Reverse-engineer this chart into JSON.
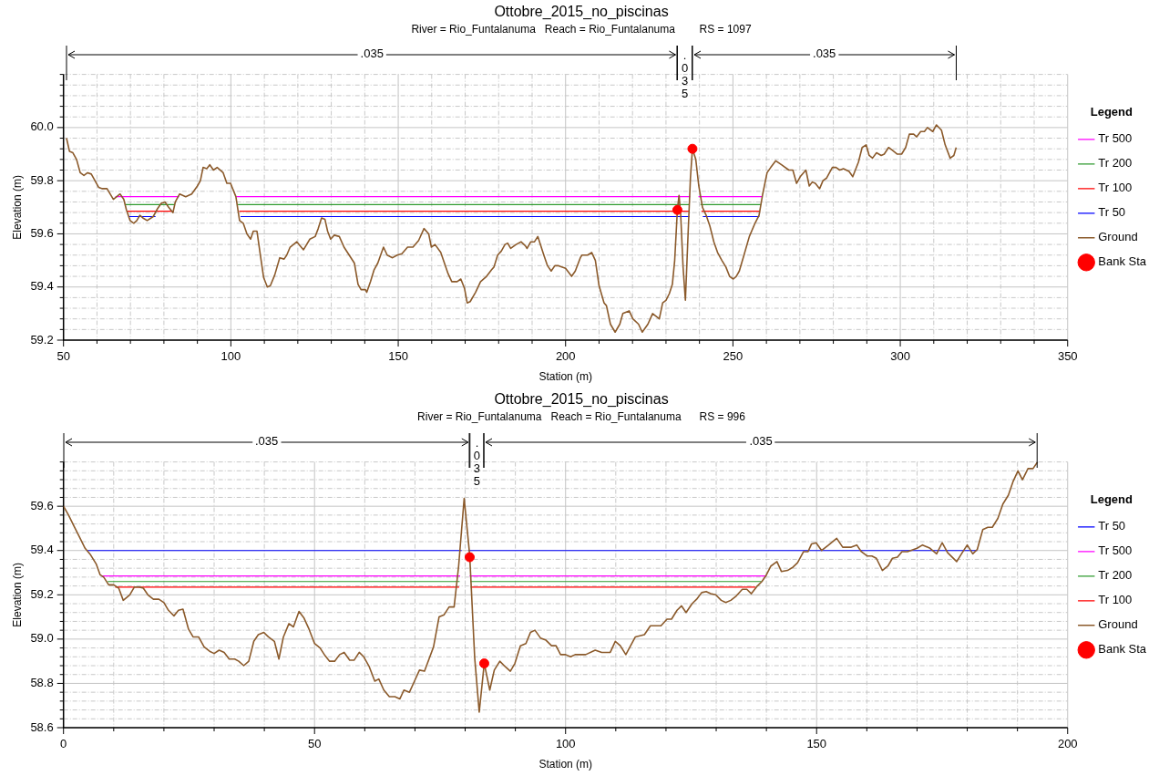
{
  "chart_data": [
    {
      "type": "line",
      "title": "Ottobre_2015_no_piscinas",
      "subtitle": "River = Rio_Funtalanuma   Reach = Rio_Funtalanuma        RS = 1097",
      "xlabel": "Station (m)",
      "ylabel": "Elevation (m)",
      "legend": "right",
      "legend_title": "Legend",
      "grid": true,
      "xlim": [
        50,
        350
      ],
      "xticks": [
        50,
        {
          "value": 60,
          "label": null
        },
        {
          "value": 70,
          "label": null
        },
        {
          "value": 80,
          "label": null
        },
        {
          "value": 90,
          "label": null
        },
        100,
        {
          "value": 110,
          "label": null
        },
        {
          "value": 120,
          "label": null
        },
        {
          "value": 130,
          "label": null
        },
        {
          "value": 140,
          "label": null
        },
        150,
        {
          "value": 160,
          "label": null
        },
        {
          "value": 170,
          "label": null
        },
        {
          "value": 180,
          "label": null
        },
        {
          "value": 190,
          "label": null
        },
        200,
        {
          "value": 210,
          "label": null
        },
        {
          "value": 220,
          "label": null
        },
        {
          "value": 230,
          "label": null
        },
        {
          "value": 240,
          "label": null
        },
        250,
        {
          "value": 260,
          "label": null
        },
        {
          "value": 270,
          "label": null
        },
        {
          "value": 280,
          "label": null
        },
        {
          "value": 290,
          "label": null
        },
        300,
        {
          "value": 310,
          "label": null
        },
        {
          "value": 320,
          "label": null
        },
        {
          "value": 330,
          "label": null
        },
        {
          "value": 340,
          "label": null
        },
        350
      ],
      "ylim": [
        59.2,
        60.2
      ],
      "yticks": [
        59.2,
        {
          "value": 59.24,
          "label": null
        },
        {
          "value": 59.28,
          "label": null
        },
        {
          "value": 59.32,
          "label": null
        },
        {
          "value": 59.36,
          "label": null
        },
        59.4,
        {
          "value": 59.44,
          "label": null
        },
        {
          "value": 59.48,
          "label": null
        },
        {
          "value": 59.52,
          "label": null
        },
        {
          "value": 59.56,
          "label": null
        },
        59.6,
        {
          "value": 59.64,
          "label": null
        },
        {
          "value": 59.68,
          "label": null
        },
        {
          "value": 59.72,
          "label": null
        },
        {
          "value": 59.76,
          "label": null
        },
        59.8,
        {
          "value": 59.84,
          "label": null
        },
        {
          "value": 59.88,
          "label": null
        },
        {
          "value": 59.92,
          "label": null
        },
        {
          "value": 59.96,
          "label": null
        },
        {
          "value": 60,
          "label": "60.0"
        },
        {
          "value": 60.04,
          "label": null
        },
        {
          "value": 60.08,
          "label": null
        },
        {
          "value": 60.12,
          "label": null
        },
        {
          "value": 60.16,
          "label": null
        },
        {
          "value": 60.2,
          "label": null
        }
      ],
      "annotations": [
        ".035",
        ".035",
        ".035"
      ],
      "series": [
        {
          "name": "Tr 500",
          "color": "#ff00ff",
          "x": [
            65.5,
            84.5,
            85,
            101.6,
            237.2,
            238,
            239.7,
            258.8
          ],
          "values": [
            59.74,
            59.74,
            null,
            59.74,
            59.74,
            null,
            59.74,
            59.74
          ]
        },
        {
          "name": "Tr 200",
          "color": "#2e9a2e",
          "x": [
            68.5,
            83.3,
            84,
            102.1,
            237.1,
            238,
            240.3,
            258.4
          ],
          "values": [
            59.71,
            59.71,
            null,
            59.71,
            59.71,
            null,
            59.71,
            59.71
          ]
        },
        {
          "name": "Tr 100",
          "color": "#ff0000",
          "x": [
            69,
            83,
            84,
            102.5,
            237,
            238,
            240.6,
            258.1
          ],
          "values": [
            59.685,
            59.685,
            null,
            59.685,
            59.685,
            null,
            59.685,
            59.685
          ]
        },
        {
          "name": "Tr 50",
          "color": "#0000ff",
          "x": [
            69.5,
            77.5,
            80,
            102.9,
            237,
            238,
            241,
            257.9
          ],
          "values": [
            59.665,
            59.665,
            null,
            59.665,
            59.665,
            null,
            59.665,
            59.665
          ]
        },
        {
          "name": "Ground",
          "color": "#8b5a2b",
          "x": [
            50.9,
            51.8,
            52.8,
            53.9,
            55.0,
            56.1,
            57.2,
            58.3,
            59.4,
            60.5,
            61.6,
            63.0,
            64.9,
            66.9,
            68.0,
            68.8,
            69.9,
            71.0,
            71.9,
            72.8,
            73.7,
            75.0,
            76.8,
            78.1,
            79.2,
            80.3,
            81.4,
            82.7,
            83.4,
            84.7,
            86.5,
            88.3,
            90.0,
            90.9,
            91.7,
            92.8,
            93.7,
            94.8,
            95.9,
            97.7,
            98.8,
            99.9,
            101.5,
            102.6,
            103.7,
            104.8,
            105.9,
            106.7,
            107.8,
            108.7,
            109.8,
            110.9,
            111.8,
            113.1,
            114.6,
            115.9,
            116.7,
            117.7,
            119.7,
            121.7,
            123.6,
            125.2,
            126.1,
            127.1,
            128.1,
            128.9,
            129.8,
            130.9,
            132.4,
            133.8,
            136.9,
            138.0,
            138.9,
            140.2,
            140.6,
            141.7,
            142.8,
            143.9,
            145.6,
            146.7,
            148.3,
            149.7,
            151.1,
            152.8,
            154.4,
            156.1,
            157.7,
            159.1,
            159.9,
            161.0,
            162.7,
            164.9,
            166.0,
            167.6,
            168.7,
            169.8,
            170.6,
            171.5,
            173.1,
            174.6,
            176.4,
            177.9,
            178.6,
            179.7,
            180.8,
            181.9,
            182.7,
            183.6,
            185.2,
            186.7,
            188.0,
            188.5,
            189.6,
            190.7,
            191.7,
            193.5,
            194.6,
            195.7,
            196.8,
            197.9,
            200.0,
            201.8,
            202.9,
            204.4,
            204.9,
            206.6,
            207.8,
            208.9,
            210.0,
            211.5,
            212.2,
            213.4,
            214.8,
            216.2,
            217.1,
            219.0,
            220.1,
            221.8,
            222.9,
            224.6,
            226.0,
            228.0,
            229.0,
            230.0,
            231.0,
            231.9,
            232.6,
            233.4,
            233.9,
            234.4,
            235.1,
            235.8,
            236.6,
            237.3,
            237.9,
            238.9,
            239.8,
            240.9,
            242.0,
            243.1,
            244.3,
            245.4,
            246.7,
            247.9,
            249.0,
            250.1,
            251.0,
            251.9,
            253.3,
            254.9,
            256.6,
            257.8,
            258.9,
            260.2,
            261.3,
            262.8,
            264.5,
            266.7,
            267.9,
            269.0,
            270.1,
            271.8,
            272.8,
            273.7,
            274.6,
            275.9,
            276.9,
            278.0,
            279.7,
            280.8,
            281.9,
            283.0,
            284.7,
            285.8,
            287.5,
            288.6,
            289.8,
            290.7,
            291.7,
            292.9,
            294.3,
            295.2,
            296.5,
            297.6,
            299.1,
            300.4,
            301.6,
            302.7,
            304.0,
            304.9,
            306.1,
            307.2,
            308.1,
            309.7,
            310.8,
            312.3,
            313.4,
            314.9,
            316.0,
            316.7
          ],
          "values": [
            59.96,
            59.91,
            59.905,
            59.88,
            59.83,
            59.82,
            59.83,
            59.825,
            59.8,
            59.775,
            59.77,
            59.77,
            59.73,
            59.75,
            59.73,
            59.69,
            59.65,
            59.64,
            59.65,
            59.67,
            59.66,
            59.65,
            59.665,
            59.695,
            59.715,
            59.72,
            59.7,
            59.68,
            59.72,
            59.75,
            59.74,
            59.75,
            59.78,
            59.8,
            59.85,
            59.845,
            59.86,
            59.84,
            59.85,
            59.83,
            59.79,
            59.79,
            59.74,
            59.65,
            59.64,
            59.6,
            59.58,
            59.61,
            59.61,
            59.53,
            59.435,
            59.4,
            59.405,
            59.445,
            59.51,
            59.505,
            59.52,
            59.55,
            59.57,
            59.54,
            59.58,
            59.59,
            59.62,
            59.66,
            59.655,
            59.61,
            59.58,
            59.595,
            59.59,
            59.55,
            59.49,
            59.41,
            59.39,
            59.39,
            59.38,
            59.42,
            59.465,
            59.49,
            59.55,
            59.52,
            59.51,
            59.52,
            59.525,
            59.55,
            59.55,
            59.575,
            59.62,
            59.6,
            59.55,
            59.56,
            59.53,
            59.45,
            59.42,
            59.42,
            59.43,
            59.395,
            59.34,
            59.345,
            59.38,
            59.42,
            59.44,
            59.465,
            59.475,
            59.52,
            59.535,
            59.56,
            59.565,
            59.545,
            59.56,
            59.57,
            59.555,
            59.545,
            59.57,
            59.57,
            59.59,
            59.52,
            59.48,
            59.46,
            59.48,
            59.48,
            59.47,
            59.44,
            59.46,
            59.51,
            59.52,
            59.52,
            59.53,
            59.5,
            59.405,
            59.34,
            59.33,
            59.26,
            59.23,
            59.26,
            59.3,
            59.31,
            59.28,
            59.26,
            59.23,
            59.26,
            59.3,
            59.28,
            59.34,
            59.35,
            59.375,
            59.41,
            59.5,
            59.69,
            59.745,
            59.67,
            59.475,
            59.35,
            59.6,
            59.81,
            59.92,
            59.88,
            59.78,
            59.7,
            59.67,
            59.63,
            59.57,
            59.53,
            59.5,
            59.475,
            59.44,
            59.43,
            59.44,
            59.46,
            59.52,
            59.59,
            59.64,
            59.67,
            59.75,
            59.83,
            59.85,
            59.875,
            59.86,
            59.84,
            59.84,
            59.79,
            59.815,
            59.84,
            59.78,
            59.795,
            59.79,
            59.77,
            59.8,
            59.81,
            59.85,
            59.85,
            59.84,
            59.845,
            59.835,
            59.815,
            59.87,
            59.925,
            59.935,
            59.895,
            59.885,
            59.905,
            59.895,
            59.9,
            59.925,
            59.915,
            59.9,
            59.9,
            59.925,
            59.975,
            59.975,
            59.965,
            59.985,
            59.985,
            60.0,
            59.985,
            60.01,
            59.99,
            59.935,
            59.885,
            59.895,
            59.925
          ]
        },
        {
          "name": "Bank Sta",
          "color": "#ff0000",
          "type": "scatter",
          "x": [
            233.4,
            237.9
          ],
          "values": [
            59.69,
            59.92
          ]
        }
      ]
    },
    {
      "type": "line",
      "title": "Ottobre_2015_no_piscinas",
      "subtitle": "River = Rio_Funtalanuma   Reach = Rio_Funtalanuma      RS = 996",
      "xlabel": "Station (m)",
      "ylabel": "Elevation (m)",
      "legend": "right",
      "legend_title": "Legend",
      "grid": true,
      "xlim": [
        0,
        200
      ],
      "xticks": [
        0,
        {
          "value": 10,
          "label": null
        },
        {
          "value": 20,
          "label": null
        },
        {
          "value": 30,
          "label": null
        },
        {
          "value": 40,
          "label": null
        },
        50,
        {
          "value": 60,
          "label": null
        },
        {
          "value": 70,
          "label": null
        },
        {
          "value": 80,
          "label": null
        },
        {
          "value": 90,
          "label": null
        },
        100,
        {
          "value": 110,
          "label": null
        },
        {
          "value": 120,
          "label": null
        },
        {
          "value": 130,
          "label": null
        },
        {
          "value": 140,
          "label": null
        },
        150,
        {
          "value": 160,
          "label": null
        },
        {
          "value": 170,
          "label": null
        },
        {
          "value": 180,
          "label": null
        },
        {
          "value": 190,
          "label": null
        },
        200
      ],
      "ylim": [
        58.6,
        59.8
      ],
      "yticks": [
        58.6,
        {
          "value": 58.64,
          "label": null
        },
        {
          "value": 58.68,
          "label": null
        },
        {
          "value": 58.72,
          "label": null
        },
        {
          "value": 58.76,
          "label": null
        },
        58.8,
        {
          "value": 58.84,
          "label": null
        },
        {
          "value": 58.88,
          "label": null
        },
        {
          "value": 58.92,
          "label": null
        },
        {
          "value": 58.96,
          "label": null
        },
        {
          "value": 59,
          "label": "59.0"
        },
        {
          "value": 59.04,
          "label": null
        },
        {
          "value": 59.08,
          "label": null
        },
        {
          "value": 59.12,
          "label": null
        },
        {
          "value": 59.16,
          "label": null
        },
        59.2,
        {
          "value": 59.24,
          "label": null
        },
        {
          "value": 59.28,
          "label": null
        },
        {
          "value": 59.32,
          "label": null
        },
        {
          "value": 59.36,
          "label": null
        },
        59.4,
        {
          "value": 59.44,
          "label": null
        },
        {
          "value": 59.48,
          "label": null
        },
        {
          "value": 59.52,
          "label": null
        },
        {
          "value": 59.56,
          "label": null
        },
        59.6,
        {
          "value": 59.64,
          "label": null
        },
        {
          "value": 59.68,
          "label": null
        },
        {
          "value": 59.72,
          "label": null
        },
        {
          "value": 59.76,
          "label": null
        },
        {
          "value": 59.8,
          "label": null
        }
      ],
      "annotations": [
        ".035",
        ".035",
        ".035"
      ],
      "series": [
        {
          "name": "Tr 50",
          "color": "#0000ff",
          "x": [
            4.8,
            79.3,
            80,
            80.6,
            182.0
          ],
          "values": [
            59.4,
            59.4,
            null,
            59.4,
            59.4
          ]
        },
        {
          "name": "Tr 500",
          "color": "#ff00ff",
          "x": [
            7.5,
            79,
            80,
            80.9,
            140
          ],
          "values": [
            59.285,
            59.285,
            null,
            59.285,
            59.285
          ]
        },
        {
          "name": "Tr 200",
          "color": "#2e9a2e",
          "x": [
            8.8,
            78.9,
            80,
            81,
            139
          ],
          "values": [
            59.26,
            59.26,
            null,
            59.26,
            59.26
          ]
        },
        {
          "name": "Tr 100",
          "color": "#ff0000",
          "x": [
            10.3,
            78.8,
            80,
            81.1,
            137.8
          ],
          "values": [
            59.235,
            59.235,
            null,
            59.235,
            59.235
          ]
        },
        {
          "name": "Ground",
          "color": "#8b5a2b",
          "x": [
            0,
            1.0,
            2.1,
            3.2,
            4.3,
            5.4,
            6.5,
            7.3,
            8.0,
            9.0,
            10.0,
            11.0,
            11.9,
            13.2,
            14.1,
            15.0,
            15.9,
            16.8,
            17.9,
            19.0,
            20.0,
            20.9,
            22.0,
            22.9,
            23.8,
            24.9,
            25.8,
            26.9,
            28.0,
            29.1,
            30.0,
            31.0,
            32.0,
            33.0,
            34.1,
            34.9,
            35.9,
            36.9,
            37.9,
            38.8,
            39.9,
            40.8,
            42.0,
            42.9,
            43.8,
            44.9,
            45.8,
            46.9,
            47.9,
            48.9,
            50.0,
            51.1,
            52.1,
            53.0,
            54.0,
            55.0,
            55.9,
            57.0,
            57.9,
            58.9,
            59.8,
            60.9,
            62.0,
            62.8,
            63.8,
            64.9,
            66.0,
            67.0,
            67.8,
            68.9,
            69.9,
            70.9,
            71.9,
            72.8,
            73.7,
            74.8,
            75.8,
            76.8,
            77.8,
            78.7,
            79.8,
            80.9,
            81.9,
            82.8,
            83.8,
            84.9,
            85.8,
            86.9,
            88.0,
            89.0,
            89.9,
            91.0,
            92.1,
            93.0,
            93.9,
            95.0,
            96.1,
            97.2,
            98.1,
            99.0,
            100.0,
            101.0,
            101.9,
            104.0,
            105.9,
            107.2,
            108.9,
            109.9,
            110.9,
            112.0,
            113.9,
            115.7,
            116.9,
            119.0,
            120.2,
            121.1,
            122.2,
            123.1,
            124.0,
            125.2,
            126.1,
            127.1,
            128.0,
            128.9,
            129.9,
            131.0,
            131.9,
            132.9,
            134.0,
            135.2,
            136.1,
            137.0,
            138.2,
            139.1,
            140.0,
            140.9,
            142.1,
            143.0,
            144.2,
            145.3,
            146.2,
            147.4,
            148.3,
            149.0,
            149.9,
            151.0,
            152.4,
            154.0,
            155.2,
            156.9,
            158.0,
            158.9,
            160.1,
            161.0,
            161.9,
            163.1,
            164.2,
            165.1,
            166.1,
            167.0,
            168.1,
            170.0,
            171.1,
            172.6,
            173.9,
            175.0,
            176.1,
            177.9,
            179.0,
            180.0,
            181.1,
            182.0,
            183.1,
            184.1,
            185.0,
            186.1,
            187.1,
            188.2,
            189.1,
            190.1,
            191.0,
            192.1,
            193.1,
            194.0
          ],
          "values": [
            59.6,
            59.56,
            59.51,
            59.46,
            59.41,
            59.38,
            59.34,
            59.29,
            59.28,
            59.245,
            59.245,
            59.23,
            59.175,
            59.2,
            59.235,
            59.235,
            59.23,
            59.2,
            59.18,
            59.18,
            59.165,
            59.13,
            59.105,
            59.13,
            59.135,
            59.045,
            59.01,
            59.01,
            58.965,
            58.945,
            58.935,
            58.95,
            58.94,
            58.91,
            58.91,
            58.9,
            58.88,
            58.9,
            58.99,
            59.02,
            59.03,
            59.01,
            58.99,
            58.91,
            59.01,
            59.07,
            59.055,
            59.125,
            59.095,
            59.045,
            58.98,
            58.96,
            58.925,
            58.9,
            58.9,
            58.93,
            58.94,
            58.905,
            58.905,
            58.94,
            58.92,
            58.875,
            58.81,
            58.82,
            58.77,
            58.74,
            58.74,
            58.73,
            58.77,
            58.76,
            58.81,
            58.86,
            58.855,
            58.91,
            58.965,
            59.1,
            59.11,
            59.145,
            59.145,
            59.33,
            59.635,
            59.38,
            58.915,
            58.67,
            58.89,
            58.77,
            58.86,
            58.9,
            58.875,
            58.855,
            58.89,
            58.97,
            58.98,
            59.03,
            59.04,
            59.005,
            58.995,
            58.97,
            58.97,
            58.93,
            58.93,
            58.92,
            58.93,
            58.93,
            58.95,
            58.94,
            58.94,
            58.99,
            58.97,
            58.93,
            59.01,
            59.02,
            59.06,
            59.06,
            59.09,
            59.09,
            59.13,
            59.15,
            59.12,
            59.16,
            59.18,
            59.21,
            59.215,
            59.205,
            59.2,
            59.175,
            59.165,
            59.175,
            59.195,
            59.225,
            59.225,
            59.205,
            59.24,
            59.26,
            59.29,
            59.33,
            59.35,
            59.305,
            59.31,
            59.325,
            59.345,
            59.395,
            59.395,
            59.43,
            59.435,
            59.4,
            59.425,
            59.455,
            59.415,
            59.415,
            59.425,
            59.395,
            59.375,
            59.375,
            59.365,
            59.31,
            59.33,
            59.365,
            59.37,
            59.395,
            59.395,
            59.41,
            59.425,
            59.41,
            59.385,
            59.435,
            59.39,
            59.35,
            59.39,
            59.425,
            59.385,
            59.405,
            59.495,
            59.505,
            59.505,
            59.545,
            59.61,
            59.65,
            59.71,
            59.76,
            59.72,
            59.77,
            59.77,
            59.8
          ]
        },
        {
          "name": "Bank Sta",
          "color": "#ff0000",
          "type": "scatter",
          "x": [
            80.9,
            83.8
          ],
          "values": [
            59.37,
            58.89
          ]
        }
      ]
    }
  ]
}
